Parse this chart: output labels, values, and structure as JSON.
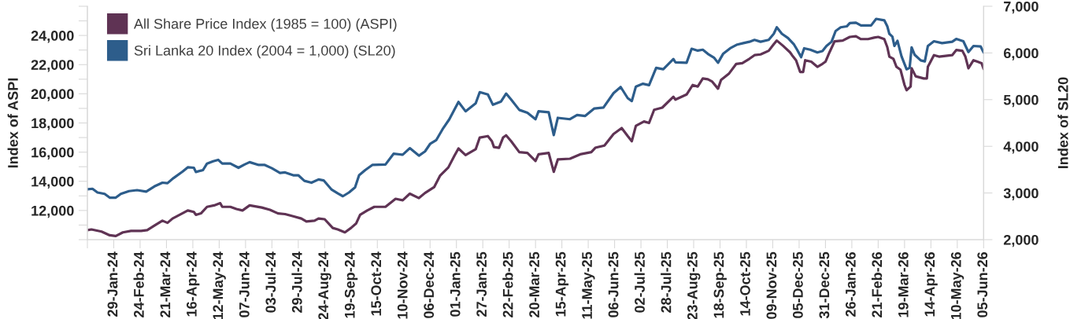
{
  "chart_data": {
    "type": "line",
    "ylabel": "Index of ASPI",
    "y2label": "Index of SL20",
    "legend": "top left",
    "line_style": "solid",
    "xlim": [
      "2024-01-03",
      "2026-06-05"
    ],
    "xticks": [
      {
        "value": "2024-01-03",
        "label": null
      },
      {
        "value": "2024-01-29",
        "label": "29-Jan-24"
      },
      {
        "value": "2024-02-24",
        "label": "24-Feb-24"
      },
      {
        "value": "2024-03-21",
        "label": "21-Mar-24"
      },
      {
        "value": "2024-04-16",
        "label": "16-Apr-24"
      },
      {
        "value": "2024-05-12",
        "label": "12-May-24"
      },
      {
        "value": "2024-06-07",
        "label": "07-Jun-24"
      },
      {
        "value": "2024-07-03",
        "label": "03-Jul-24"
      },
      {
        "value": "2024-07-29",
        "label": "29-Jul-24"
      },
      {
        "value": "2024-08-24",
        "label": "24-Aug-24"
      },
      {
        "value": "2024-09-19",
        "label": "19-Sep-24"
      },
      {
        "value": "2024-10-15",
        "label": "15-Oct-24"
      },
      {
        "value": "2024-11-10",
        "label": "10-Nov-24"
      },
      {
        "value": "2024-12-06",
        "label": "06-Dec-24"
      },
      {
        "value": "2025-01-01",
        "label": "01-Jan-25"
      },
      {
        "value": "2025-01-27",
        "label": "27-Jan-25"
      },
      {
        "value": "2025-02-22",
        "label": "22-Feb-25"
      },
      {
        "value": "2025-03-20",
        "label": "20-Mar-25"
      },
      {
        "value": "2025-04-15",
        "label": "15-Apr-25"
      },
      {
        "value": "2025-05-11",
        "label": "11-May-25"
      },
      {
        "value": "2025-06-06",
        "label": "06-Jun-25"
      },
      {
        "value": "2025-07-02",
        "label": "02-Jul-25"
      },
      {
        "value": "2025-07-28",
        "label": "28-Jul-25"
      },
      {
        "value": "2025-08-23",
        "label": "23-Aug-25"
      },
      {
        "value": "2025-09-18",
        "label": "18-Sep-25"
      },
      {
        "value": "2025-10-14",
        "label": "14-Oct-25"
      },
      {
        "value": "2025-11-09",
        "label": "09-Nov-25"
      },
      {
        "value": "2025-12-05",
        "label": "05-Dec-25"
      },
      {
        "value": "2025-12-31",
        "label": "31-Dec-25"
      },
      {
        "value": "2026-01-26",
        "label": "26-Jan-26"
      },
      {
        "value": "2026-02-21",
        "label": "21-Feb-26"
      },
      {
        "value": "2026-03-19",
        "label": "19-Mar-26"
      },
      {
        "value": "2026-04-14",
        "label": "14-Apr-26"
      },
      {
        "value": "2026-05-10",
        "label": "10-May-26"
      },
      {
        "value": "2026-06-05",
        "label": "05-Jun-26"
      }
    ],
    "ylim": [
      10000,
      26000
    ],
    "yticks": [
      {
        "value": 10000,
        "label": null
      },
      {
        "value": 11000,
        "label": null
      },
      {
        "value": 12000,
        "label": "12,000"
      },
      {
        "value": 13000,
        "label": null
      },
      {
        "value": 14000,
        "label": "14,000"
      },
      {
        "value": 15000,
        "label": null
      },
      {
        "value": 16000,
        "label": "16,000"
      },
      {
        "value": 17000,
        "label": null
      },
      {
        "value": 18000,
        "label": "18,000"
      },
      {
        "value": 19000,
        "label": null
      },
      {
        "value": 20000,
        "label": "20,000"
      },
      {
        "value": 21000,
        "label": null
      },
      {
        "value": 22000,
        "label": "22,000"
      },
      {
        "value": 23000,
        "label": null
      },
      {
        "value": 24000,
        "label": "24,000"
      },
      {
        "value": 25000,
        "label": null
      },
      {
        "value": 26000,
        "label": null
      }
    ],
    "y2lim": [
      2000,
      7000
    ],
    "y2ticks": [
      {
        "value": 2000,
        "label": "2,000"
      },
      {
        "value": 3000,
        "label": "3,000"
      },
      {
        "value": 4000,
        "label": "4,000"
      },
      {
        "value": 5000,
        "label": "5,000"
      },
      {
        "value": 6000,
        "label": "6,000"
      },
      {
        "value": 7000,
        "label": "7,000"
      }
    ],
    "series": [
      {
        "name": "All Share Price Index (1985 = 100) (ASPI)",
        "color": "#5f3354",
        "axis": "y",
        "x": [
          "2024-01-03",
          "2024-01-07",
          "2024-01-17",
          "2024-01-25",
          "2024-01-31",
          "2024-02-07",
          "2024-02-15",
          "2024-02-25",
          "2024-03-02",
          "2024-03-10",
          "2024-03-17",
          "2024-03-22",
          "2024-03-27",
          "2024-04-03",
          "2024-04-11",
          "2024-04-17",
          "2024-04-19",
          "2024-04-24",
          "2024-04-30",
          "2024-05-07",
          "2024-05-13",
          "2024-05-15",
          "2024-05-23",
          "2024-05-29",
          "2024-06-04",
          "2024-06-11",
          "2024-06-23",
          "2024-07-01",
          "2024-07-09",
          "2024-07-16",
          "2024-07-24",
          "2024-08-01",
          "2024-08-06",
          "2024-08-14",
          "2024-08-18",
          "2024-08-24",
          "2024-09-01",
          "2024-09-06",
          "2024-09-13",
          "2024-09-19",
          "2024-09-24",
          "2024-09-28",
          "2024-10-05",
          "2024-10-12",
          "2024-10-23",
          "2024-11-02",
          "2024-11-09",
          "2024-11-16",
          "2024-11-25",
          "2024-12-01",
          "2024-12-10",
          "2024-12-16",
          "2024-12-24",
          "2024-12-30",
          "2025-01-03",
          "2025-01-10",
          "2025-01-20",
          "2025-01-24",
          "2025-02-01",
          "2025-02-05",
          "2025-02-07",
          "2025-02-12",
          "2025-02-16",
          "2025-02-19",
          "2025-02-24",
          "2025-03-04",
          "2025-03-12",
          "2025-03-20",
          "2025-03-23",
          "2025-04-02",
          "2025-04-07",
          "2025-04-11",
          "2025-04-23",
          "2025-05-03",
          "2025-05-14",
          "2025-05-18",
          "2025-05-27",
          "2025-06-05",
          "2025-06-13",
          "2025-06-19",
          "2025-06-23",
          "2025-06-27",
          "2025-07-05",
          "2025-07-10",
          "2025-07-15",
          "2025-07-23",
          "2025-08-03",
          "2025-08-05",
          "2025-08-16",
          "2025-08-22",
          "2025-08-27",
          "2025-09-01",
          "2025-09-06",
          "2025-09-10",
          "2025-09-16",
          "2025-09-19",
          "2025-09-27",
          "2025-10-04",
          "2025-10-10",
          "2025-10-17",
          "2025-10-22",
          "2025-10-28",
          "2025-11-05",
          "2025-11-10",
          "2025-11-13",
          "2025-11-19",
          "2025-11-26",
          "2025-11-28",
          "2025-12-02",
          "2025-12-06",
          "2025-12-09",
          "2025-12-11",
          "2025-12-17",
          "2025-12-23",
          "2025-12-28",
          "2025-12-31",
          "2026-01-04",
          "2026-01-09",
          "2026-01-17",
          "2026-01-24",
          "2026-01-30",
          "2026-02-04",
          "2026-02-11",
          "2026-02-17",
          "2026-02-21",
          "2026-02-27",
          "2026-03-02",
          "2026-03-04",
          "2026-03-08",
          "2026-03-11",
          "2026-03-15",
          "2026-03-19",
          "2026-03-21",
          "2026-03-25",
          "2026-03-26",
          "2026-03-30",
          "2026-04-07",
          "2026-04-10",
          "2026-04-11",
          "2026-04-17",
          "2026-04-22",
          "2026-05-05",
          "2026-05-09",
          "2026-05-15",
          "2026-05-18",
          "2026-05-21",
          "2026-05-26",
          "2026-05-30",
          "2026-06-03",
          "2026-06-05"
        ],
        "values": [
          10650,
          10700,
          10550,
          10300,
          10250,
          10500,
          10600,
          10600,
          10650,
          11000,
          11300,
          11150,
          11450,
          11700,
          12000,
          11900,
          11700,
          11800,
          12250,
          12350,
          12500,
          12250,
          12250,
          12100,
          12000,
          12350,
          12200,
          12050,
          11800,
          11750,
          11600,
          11450,
          11250,
          11300,
          11450,
          11400,
          10800,
          10700,
          10500,
          10800,
          11100,
          11700,
          12000,
          12250,
          12250,
          12800,
          12700,
          13150,
          12850,
          13200,
          13600,
          14400,
          14950,
          15750,
          16250,
          15800,
          16200,
          17000,
          17100,
          16750,
          16350,
          16300,
          17000,
          17150,
          16750,
          16000,
          15950,
          15400,
          15850,
          15950,
          14650,
          15500,
          15550,
          15850,
          16000,
          16300,
          16450,
          17250,
          17650,
          17100,
          16750,
          17800,
          18100,
          18000,
          18900,
          19050,
          19800,
          19600,
          19950,
          20600,
          20500,
          21050,
          21000,
          20850,
          20350,
          20950,
          21400,
          22050,
          22100,
          22400,
          22650,
          22700,
          22950,
          23400,
          23650,
          23300,
          22850,
          22650,
          22300,
          21500,
          21500,
          22300,
          22200,
          21850,
          22050,
          22200,
          22850,
          23600,
          23650,
          23900,
          23950,
          23750,
          23750,
          23850,
          23900,
          23750,
          23200,
          22550,
          22400,
          21850,
          21650,
          20600,
          20250,
          20500,
          21750,
          21200,
          21050,
          21050,
          21850,
          22650,
          22550,
          22650,
          23000,
          22950,
          22550,
          21750,
          22300,
          22200,
          22100,
          21700
        ]
      },
      {
        "name": "Sri Lanka 20 Index (2004 = 1,000) (SL20)",
        "color": "#2d5d8b",
        "axis": "y2",
        "x": [
          "2024-01-03",
          "2024-01-08",
          "2024-01-13",
          "2024-01-20",
          "2024-01-25",
          "2024-01-31",
          "2024-02-05",
          "2024-02-13",
          "2024-02-21",
          "2024-03-01",
          "2024-03-09",
          "2024-03-17",
          "2024-03-22",
          "2024-03-28",
          "2024-04-06",
          "2024-04-11",
          "2024-04-17",
          "2024-04-19",
          "2024-04-26",
          "2024-04-30",
          "2024-05-06",
          "2024-05-11",
          "2024-05-15",
          "2024-05-23",
          "2024-05-31",
          "2024-06-06",
          "2024-06-11",
          "2024-06-20",
          "2024-06-26",
          "2024-07-03",
          "2024-07-11",
          "2024-07-16",
          "2024-07-24",
          "2024-07-29",
          "2024-08-04",
          "2024-08-11",
          "2024-08-18",
          "2024-08-23",
          "2024-08-31",
          "2024-09-06",
          "2024-09-11",
          "2024-09-17",
          "2024-09-23",
          "2024-09-27",
          "2024-10-03",
          "2024-10-10",
          "2024-10-23",
          "2024-10-31",
          "2024-11-09",
          "2024-11-16",
          "2024-11-25",
          "2024-12-01",
          "2024-12-06",
          "2024-12-12",
          "2024-12-19",
          "2024-12-25",
          "2025-01-03",
          "2025-01-10",
          "2025-01-20",
          "2025-01-24",
          "2025-02-01",
          "2025-02-06",
          "2025-02-14",
          "2025-02-19",
          "2025-02-24",
          "2025-03-04",
          "2025-03-12",
          "2025-03-20",
          "2025-03-23",
          "2025-04-02",
          "2025-04-07",
          "2025-04-11",
          "2025-04-23",
          "2025-04-30",
          "2025-05-08",
          "2025-05-17",
          "2025-05-26",
          "2025-06-05",
          "2025-06-12",
          "2025-06-19",
          "2025-06-23",
          "2025-06-27",
          "2025-07-04",
          "2025-07-10",
          "2025-07-17",
          "2025-07-24",
          "2025-08-03",
          "2025-08-05",
          "2025-08-16",
          "2025-08-21",
          "2025-08-27",
          "2025-09-01",
          "2025-09-06",
          "2025-09-12",
          "2025-09-16",
          "2025-09-21",
          "2025-09-28",
          "2025-10-05",
          "2025-10-11",
          "2025-10-17",
          "2025-10-22",
          "2025-10-28",
          "2025-11-05",
          "2025-11-10",
          "2025-11-13",
          "2025-11-18",
          "2025-11-24",
          "2025-11-30",
          "2025-12-03",
          "2025-12-07",
          "2025-12-10",
          "2025-12-16",
          "2025-12-23",
          "2025-12-28",
          "2026-01-01",
          "2026-01-06",
          "2026-01-10",
          "2026-01-15",
          "2026-01-21",
          "2026-01-24",
          "2026-01-30",
          "2026-02-04",
          "2026-02-14",
          "2026-02-19",
          "2026-02-27",
          "2026-03-02",
          "2026-03-04",
          "2026-03-07",
          "2026-03-09",
          "2026-03-12",
          "2026-03-16",
          "2026-03-21",
          "2026-03-24",
          "2026-03-26",
          "2026-03-29",
          "2026-04-04",
          "2026-04-08",
          "2026-04-11",
          "2026-04-17",
          "2026-04-25",
          "2026-05-05",
          "2026-05-09",
          "2026-05-16",
          "2026-05-21",
          "2026-05-26",
          "2026-06-02",
          "2026-06-05"
        ],
        "values": [
          3080,
          3090,
          3010,
          2980,
          2900,
          2900,
          2980,
          3040,
          3060,
          3030,
          3140,
          3220,
          3210,
          3320,
          3460,
          3550,
          3540,
          3450,
          3490,
          3630,
          3680,
          3710,
          3630,
          3630,
          3540,
          3610,
          3660,
          3600,
          3600,
          3530,
          3430,
          3440,
          3380,
          3380,
          3260,
          3220,
          3290,
          3270,
          3070,
          2990,
          2930,
          3010,
          3120,
          3380,
          3490,
          3600,
          3610,
          3840,
          3820,
          3960,
          3800,
          3890,
          4050,
          4130,
          4390,
          4580,
          4950,
          4750,
          4920,
          5160,
          5110,
          4890,
          4960,
          5130,
          5000,
          4780,
          4720,
          4580,
          4750,
          4730,
          4240,
          4610,
          4580,
          4670,
          4650,
          4810,
          4830,
          5140,
          5270,
          5030,
          4970,
          5280,
          5340,
          5310,
          5680,
          5650,
          5870,
          5800,
          5790,
          6090,
          6050,
          6070,
          5980,
          5900,
          5790,
          5980,
          6100,
          6180,
          6210,
          6240,
          6280,
          6240,
          6280,
          6410,
          6550,
          6410,
          6320,
          6180,
          6070,
          5910,
          6100,
          6070,
          6010,
          6040,
          6150,
          6240,
          6470,
          6550,
          6570,
          6640,
          6650,
          6590,
          6590,
          6730,
          6700,
          6570,
          6410,
          6350,
          6150,
          6260,
          5930,
          5650,
          5680,
          6120,
          5960,
          5840,
          5820,
          6150,
          6250,
          6210,
          6240,
          6300,
          6250,
          6020,
          6150,
          6140,
          6010
        ]
      }
    ]
  }
}
